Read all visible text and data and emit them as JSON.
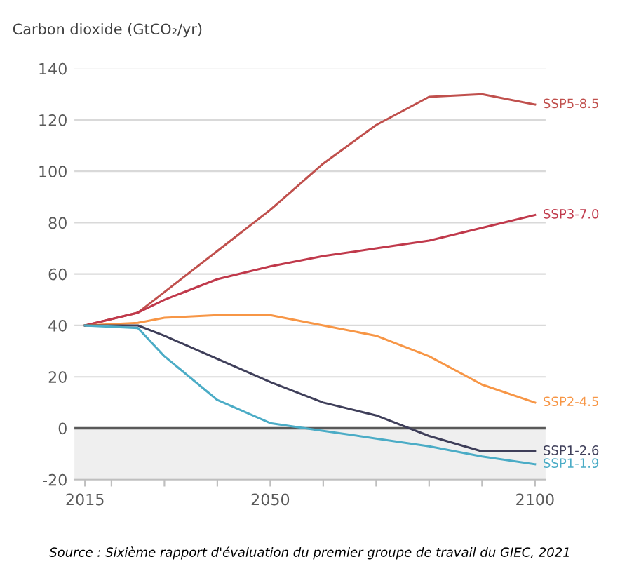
{
  "chart_data": {
    "type": "line",
    "ylabel": "Carbon dioxide (GtCO₂/yr)",
    "x": [
      2015,
      2025,
      2030,
      2040,
      2050,
      2060,
      2070,
      2080,
      2090,
      2100
    ],
    "series": [
      {
        "name": "SSP5-8.5",
        "color": "#c0504d",
        "values": [
          40,
          45,
          53,
          69,
          85,
          103,
          118,
          129,
          130,
          126
        ]
      },
      {
        "name": "SSP3-7.0",
        "color": "#c0394b",
        "values": [
          40,
          45,
          50,
          58,
          63,
          67,
          70,
          73,
          78,
          83
        ]
      },
      {
        "name": "SSP2-4.5",
        "color": "#f79646",
        "values": [
          40,
          41,
          43,
          44,
          44,
          40,
          36,
          28,
          17,
          10
        ]
      },
      {
        "name": "SSP1-2.6",
        "color": "#3f3f5a",
        "values": [
          40,
          40,
          36,
          27,
          18,
          10,
          5,
          -3,
          -9,
          -9
        ]
      },
      {
        "name": "SSP1-1.9",
        "color": "#4bacc6",
        "values": [
          40,
          39,
          28,
          11,
          2,
          -1,
          -4,
          -7,
          -11,
          -14
        ]
      }
    ],
    "xlim": [
      2013,
      2102
    ],
    "ylim": [
      -20,
      140
    ],
    "xticks": [
      2015,
      {
        "value": 2020,
        "label": null
      },
      {
        "value": 2030,
        "label": null
      },
      {
        "value": 2040,
        "label": null
      },
      2050,
      {
        "value": 2060,
        "label": null
      },
      {
        "value": 2070,
        "label": null
      },
      {
        "value": 2080,
        "label": null
      },
      {
        "value": 2090,
        "label": null
      },
      2100
    ],
    "yticks": [
      -20,
      0,
      20,
      40,
      60,
      80,
      100,
      120,
      140
    ],
    "grid": "y",
    "legend": false,
    "ref_lines": [
      {
        "axis": "y",
        "value": 0,
        "color": "#595959"
      }
    ],
    "bands": [
      {
        "axis": "y",
        "from": -20,
        "to": 0,
        "color": "#efefef"
      }
    ],
    "annotations": [
      "Source : Sixième rapport d'évaluation du premier groupe de travail du GIEC, 2021"
    ]
  }
}
